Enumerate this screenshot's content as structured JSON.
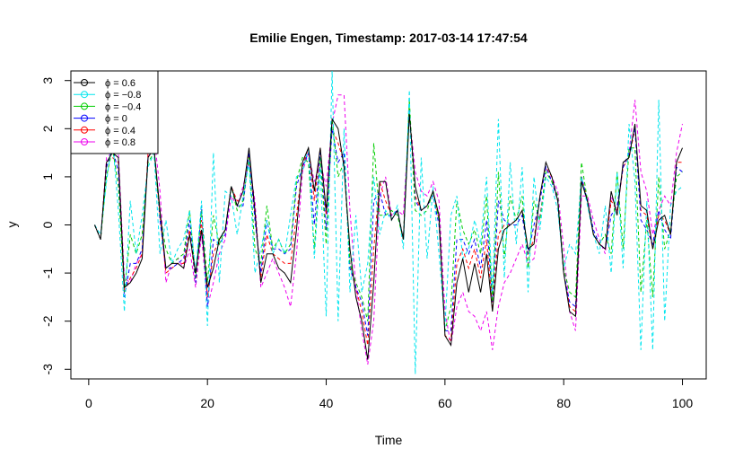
{
  "chart_data": {
    "type": "line",
    "title": "Emilie Engen, Timestamp: 2017-03-14 17:47:54",
    "xlabel": "Time",
    "ylabel": "y",
    "xlim": [
      1,
      100
    ],
    "ylim": [
      -3.2,
      3.2
    ],
    "x_ticks": [
      0,
      20,
      40,
      60,
      80,
      100
    ],
    "y_ticks": [
      -3,
      -2,
      -1,
      0,
      1,
      2,
      3
    ],
    "grid": false,
    "legend_position": "top-left",
    "x": [
      1,
      2,
      3,
      4,
      5,
      6,
      7,
      8,
      9,
      10,
      11,
      12,
      13,
      14,
      15,
      16,
      17,
      18,
      19,
      20,
      21,
      22,
      23,
      24,
      25,
      26,
      27,
      28,
      29,
      30,
      31,
      32,
      33,
      34,
      35,
      36,
      37,
      38,
      39,
      40,
      41,
      42,
      43,
      44,
      45,
      46,
      47,
      48,
      49,
      50,
      51,
      52,
      53,
      54,
      55,
      56,
      57,
      58,
      59,
      60,
      61,
      62,
      63,
      64,
      65,
      66,
      67,
      68,
      69,
      70,
      71,
      72,
      73,
      74,
      75,
      76,
      77,
      78,
      79,
      80,
      81,
      82,
      83,
      84,
      85,
      86,
      87,
      88,
      89,
      90,
      91,
      92,
      93,
      94,
      95,
      96,
      97,
      98,
      99,
      100
    ],
    "series": [
      {
        "name": "ϕ = 0.6",
        "color": "#000000",
        "dash": "solid",
        "values": [
          0,
          -0.3,
          1.3,
          1.5,
          1.4,
          -1.3,
          -1.2,
          -1.0,
          -0.7,
          1.4,
          1.6,
          0.3,
          -0.9,
          -0.8,
          -0.8,
          -0.9,
          -0.2,
          -1.0,
          -0.1,
          -1.3,
          -0.9,
          -0.3,
          -0.1,
          0.8,
          0.4,
          0.7,
          1.6,
          0.3,
          -1.2,
          -0.6,
          -0.6,
          -0.9,
          -1.0,
          -1.2,
          -0.1,
          1.3,
          1.6,
          0.7,
          1.6,
          0.3,
          2.2,
          2.0,
          1.2,
          -0.5,
          -1.5,
          -2.0,
          -2.8,
          -1.2,
          0.9,
          0.9,
          0.1,
          0.3,
          -0.3,
          2.3,
          0.8,
          0.3,
          0.4,
          0.7,
          0.2,
          -2.3,
          -2.5,
          -1.2,
          -0.7,
          -1.4,
          -0.8,
          -1.4,
          -0.6,
          -1.8,
          -0.5,
          -0.1,
          0,
          0.1,
          0.3,
          -0.5,
          -0.4,
          0.6,
          1.3,
          1.0,
          0.5,
          -1.0,
          -1.8,
          -1.9,
          0.9,
          0.5,
          -0.2,
          -0.4,
          -0.5,
          0.7,
          0.2,
          1.3,
          1.4,
          2.1,
          0.4,
          0.3,
          -0.5,
          0.1,
          0.2,
          -0.2,
          1.3,
          1.6
        ]
      },
      {
        "name": "ϕ = −0.8",
        "color": "#00e5ee",
        "dash": "4,3",
        "values": [
          0,
          -0.2,
          0.9,
          1.8,
          0.3,
          -1.8,
          0.5,
          -0.6,
          0.2,
          1.2,
          1.5,
          -0.6,
          0.1,
          -0.8,
          -0.5,
          -0.3,
          0.3,
          -1.0,
          0.5,
          -2.1,
          1.5,
          -1.2,
          0.7,
          0.6,
          -0.2,
          0.6,
          1.3,
          -1.0,
          -0.5,
          0.1,
          -0.6,
          -0.3,
          -0.6,
          0.2,
          1.0,
          1.1,
          1.6,
          -0.7,
          1.2,
          -1.9,
          3.2,
          -2.0,
          2.0,
          -1.4,
          0.2,
          -1.4,
          -0.8,
          1.0,
          -0.2,
          0.3,
          0.1,
          0.4,
          -0.5,
          2.8,
          -3.1,
          1.4,
          -0.7,
          0.8,
          -0.6,
          -2.1,
          0.2,
          0.6,
          -0.7,
          -0.5,
          0.1,
          -0.4,
          1.0,
          -1.4,
          2.2,
          -1.1,
          1.3,
          -0.4,
          1.2,
          -1.4,
          1.0,
          -0.1,
          1.0,
          0.8,
          0.3,
          -0.9,
          -0.4,
          -0.6,
          1.0,
          0.4,
          -0.2,
          -0.6,
          0.4,
          -1.0,
          1.1,
          -0.9,
          2.1,
          0.9,
          -2.6,
          0.5,
          -2.6,
          2.6,
          -2.0,
          0.4,
          0.7,
          0.8
        ]
      },
      {
        "name": "ϕ = −0.4",
        "color": "#00cd00",
        "dash": "4,3",
        "values": [
          0,
          -0.3,
          1.0,
          1.6,
          0.8,
          -1.4,
          -0.2,
          -0.6,
          -0.2,
          1.3,
          1.5,
          0.2,
          -0.5,
          -0.8,
          -0.7,
          -0.6,
          0.3,
          -1.1,
          0.3,
          -1.2,
          0.2,
          -0.4,
          -0.1,
          0.8,
          0.3,
          0.5,
          1.4,
          -0.5,
          -0.8,
          0.4,
          -0.5,
          -0.3,
          -0.6,
          -0.4,
          0.9,
          1.4,
          1.3,
          -0.5,
          1.4,
          -0.4,
          2.2,
          1.0,
          1.3,
          -0.8,
          -1.2,
          -1.5,
          -2.0,
          1.7,
          0.2,
          0.2,
          0.3,
          0.2,
          -0.3,
          2.6,
          0.3,
          0.2,
          0.3,
          0.7,
          0.1,
          -2.2,
          -1.7,
          0.5,
          -0.1,
          -0.4,
          -0.1,
          -0.6,
          0.6,
          -1.6,
          1.1,
          -0.7,
          0.6,
          0.1,
          0.6,
          -0.9,
          0.5,
          0.1,
          1.1,
          0.9,
          0.6,
          -0.9,
          -1.4,
          -1.5,
          1.3,
          0.5,
          -0.2,
          -0.4,
          -0.2,
          -0.6,
          1.1,
          -0.5,
          1.6,
          1.6,
          -1.4,
          0.1,
          -1.5,
          1.0,
          -0.5,
          -0.1,
          1.0,
          1.1
        ]
      },
      {
        "name": "ϕ = 0",
        "color": "#0000ff",
        "dash": "4,3",
        "values": [
          0,
          -0.3,
          1.2,
          1.6,
          1.1,
          -1.5,
          -0.8,
          -0.8,
          -0.5,
          1.4,
          1.6,
          0.1,
          -0.9,
          -0.9,
          -0.8,
          -0.7,
          0.1,
          -1.2,
          0.4,
          -1.7,
          -0.3,
          -0.4,
          -0.2,
          0.8,
          0.4,
          0.4,
          1.5,
          0.1,
          -1.0,
          0.1,
          -0.5,
          -0.5,
          -0.6,
          -0.5,
          0.8,
          1.2,
          1.5,
          0.0,
          1.5,
          -0.1,
          2.0,
          1.3,
          1.5,
          -0.9,
          -1.3,
          -1.6,
          -2.3,
          0.5,
          0.7,
          0.2,
          0.2,
          0.3,
          -0.3,
          2.4,
          0.5,
          0.3,
          0.4,
          0.6,
          0.0,
          -2.2,
          -2.2,
          -0.3,
          -0.3,
          -0.6,
          -0.3,
          -0.9,
          0.1,
          -1.6,
          0.5,
          0.1,
          0.0,
          0.0,
          0.2,
          -0.6,
          0.0,
          0.5,
          1.2,
          0.9,
          0.5,
          -1.0,
          -1.6,
          -1.7,
          1.0,
          0.5,
          -0.1,
          -0.4,
          -0.5,
          0.2,
          0.4,
          1.2,
          1.5,
          2.0,
          0.1,
          -0.1,
          -0.4,
          0.3,
          -0.1,
          -0.3,
          1.2,
          1.1
        ]
      },
      {
        "name": "ϕ = 0.4",
        "color": "#ff0000",
        "dash": "4,3",
        "values": [
          0,
          -0.3,
          1.3,
          1.4,
          1.3,
          -1.4,
          -1.1,
          -0.9,
          -0.6,
          1.5,
          1.6,
          0.2,
          -1.0,
          -0.9,
          -0.8,
          -0.8,
          -0.1,
          -1.2,
          0.1,
          -1.5,
          -0.6,
          -0.3,
          -0.1,
          0.8,
          0.5,
          0.5,
          1.5,
          0.2,
          -1.1,
          -0.2,
          -0.6,
          -0.7,
          -0.8,
          -0.8,
          0.2,
          1.2,
          1.6,
          0.5,
          1.6,
          0.2,
          2.0,
          1.7,
          1.3,
          -0.8,
          -1.3,
          -1.8,
          -2.5,
          -0.5,
          0.9,
          0.5,
          0.2,
          0.3,
          -0.3,
          2.4,
          0.6,
          0.3,
          0.4,
          0.7,
          0.1,
          -2.3,
          -2.4,
          -0.8,
          -0.5,
          -0.9,
          -0.5,
          -1.1,
          -0.3,
          -1.7,
          -0.2,
          0.0,
          0.0,
          0.1,
          0.3,
          -0.6,
          -0.3,
          0.6,
          1.2,
          1.0,
          0.5,
          -1.0,
          -1.7,
          -1.8,
          1.0,
          0.5,
          -0.2,
          -0.4,
          -0.5,
          0.5,
          0.3,
          1.2,
          1.4,
          2.0,
          0.3,
          0.2,
          -0.5,
          0.2,
          0.1,
          -0.2,
          1.3,
          1.3
        ]
      },
      {
        "name": "ϕ = 0.8",
        "color": "#ee00ee",
        "dash": "4,3",
        "values": [
          0,
          -0.3,
          1.4,
          1.5,
          1.5,
          -1.1,
          -1.2,
          -0.8,
          -0.6,
          1.4,
          1.9,
          0.7,
          -1.2,
          -0.8,
          -0.7,
          -0.9,
          -0.5,
          -1.3,
          -0.2,
          -1.7,
          -1.2,
          -0.6,
          -0.3,
          0.6,
          0.4,
          0.8,
          1.3,
          0.5,
          -1.3,
          -1.0,
          -0.7,
          -1.0,
          -1.3,
          -1.7,
          -0.6,
          1.1,
          1.5,
          0.9,
          1.3,
          0.8,
          2.1,
          2.7,
          2.7,
          0.3,
          -1.3,
          -2.2,
          -2.9,
          -2.0,
          0.6,
          1.0,
          0.2,
          0.3,
          0.2,
          2.3,
          1.1,
          0.7,
          0.6,
          0.9,
          0.5,
          -1.8,
          -2.5,
          -1.7,
          -1.4,
          -1.8,
          -1.9,
          -2.2,
          -1.8,
          -2.6,
          -1.7,
          -1.2,
          -1.0,
          -0.7,
          -0.4,
          -0.8,
          -0.7,
          0.2,
          1.0,
          1.0,
          0.7,
          -0.5,
          -1.8,
          -2.2,
          0.6,
          0.6,
          0.1,
          -0.3,
          -0.6,
          0.6,
          0.3,
          1.2,
          1.5,
          2.6,
          1.1,
          0.7,
          -0.2,
          0.3,
          0.6,
          0.4,
          1.5,
          2.1
        ]
      }
    ]
  }
}
